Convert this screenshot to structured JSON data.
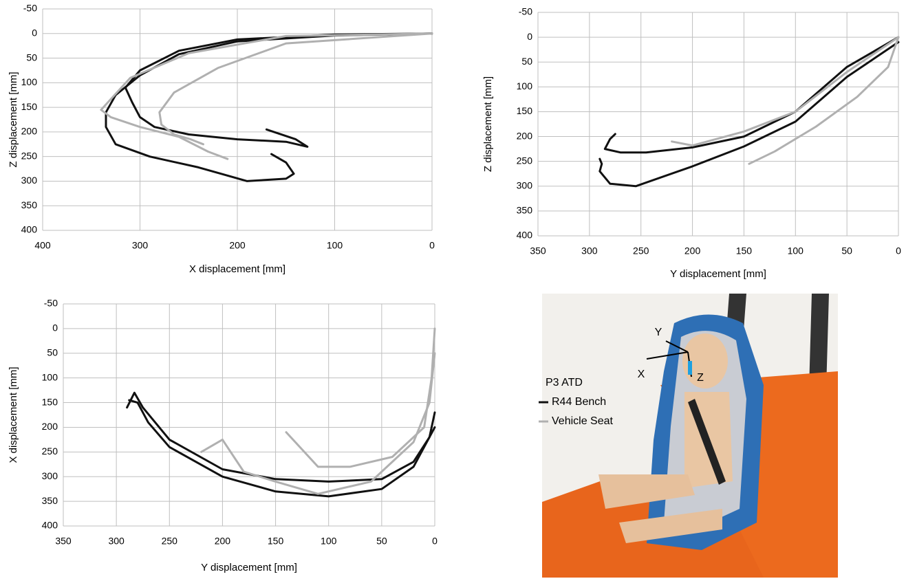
{
  "chart_data": [
    {
      "type": "line",
      "x_label": "X displacement [mm]",
      "y_label": "Z displacement [mm]",
      "xlim": [
        400,
        0
      ],
      "xticks": [
        400,
        300,
        200,
        100,
        0
      ],
      "ylim": [
        400,
        -50
      ],
      "yticks": [
        -50,
        0,
        50,
        100,
        150,
        200,
        250,
        300,
        350,
        400
      ],
      "grid": true,
      "series": [
        {
          "color": "#111111",
          "trials": [
            {
              "x": [
                0,
                100,
                200,
                260,
                300,
                315,
                308,
                300,
                285,
                250,
                200,
                150,
                128,
                140,
                170
              ],
              "y": [
                0,
                2,
                12,
                35,
                75,
                110,
                140,
                170,
                190,
                205,
                215,
                220,
                230,
                215,
                195
              ]
            },
            {
              "x": [
                0,
                100,
                200,
                260,
                300,
                325,
                335,
                335,
                325,
                290,
                240,
                190,
                150,
                142,
                150,
                165
              ],
              "y": [
                0,
                4,
                16,
                42,
                85,
                125,
                160,
                190,
                225,
                250,
                272,
                300,
                295,
                285,
                262,
                245
              ]
            }
          ]
        },
        {
          "color": "#b0b0b0",
          "trials": [
            {
              "x": [
                0,
                150,
                250,
                310,
                340,
                330,
                300,
                260,
                230,
                210
              ],
              "y": [
                0,
                5,
                40,
                90,
                155,
                170,
                190,
                210,
                240,
                255
              ]
            },
            {
              "x": [
                0,
                150,
                220,
                265,
                280,
                278,
                265,
                248,
                235
              ],
              "y": [
                0,
                20,
                70,
                120,
                160,
                185,
                205,
                215,
                225
              ]
            }
          ]
        }
      ]
    },
    {
      "type": "line",
      "x_label": "Y displacement [mm]",
      "y_label": "Z displacement [mm]",
      "xlim": [
        350,
        0
      ],
      "xticks": [
        350,
        300,
        250,
        200,
        150,
        100,
        50,
        0
      ],
      "ylim": [
        400,
        -50
      ],
      "yticks": [
        -50,
        0,
        50,
        100,
        150,
        200,
        250,
        300,
        350,
        400
      ],
      "grid": true,
      "series": [
        {
          "color": "#111111",
          "trials": [
            {
              "x": [
                0,
                50,
                100,
                150,
                200,
                245,
                270,
                285,
                280,
                275
              ],
              "y": [
                0,
                60,
                150,
                200,
                222,
                232,
                232,
                225,
                205,
                195
              ]
            },
            {
              "x": [
                0,
                50,
                100,
                150,
                200,
                255,
                280,
                290,
                288,
                290
              ],
              "y": [
                10,
                80,
                170,
                220,
                260,
                300,
                295,
                270,
                255,
                245
              ]
            }
          ]
        },
        {
          "color": "#b0b0b0",
          "trials": [
            {
              "x": [
                0,
                50,
                100,
                150,
                200,
                220
              ],
              "y": [
                0,
                70,
                150,
                190,
                218,
                210
              ]
            },
            {
              "x": [
                0,
                10,
                40,
                80,
                120,
                145
              ],
              "y": [
                0,
                60,
                120,
                180,
                230,
                255
              ]
            }
          ]
        }
      ]
    },
    {
      "type": "line",
      "x_label": "Y displacement [mm]",
      "y_label": "X displacement [mm]",
      "xlim": [
        350,
        0
      ],
      "xticks": [
        350,
        300,
        250,
        200,
        150,
        100,
        50,
        0
      ],
      "ylim": [
        400,
        -50
      ],
      "yticks": [
        -50,
        0,
        50,
        100,
        150,
        200,
        250,
        300,
        350,
        400
      ],
      "grid": true,
      "series": [
        {
          "color": "#111111",
          "trials": [
            {
              "x": [
                0,
                5,
                20,
                50,
                100,
                150,
                200,
                250,
                275,
                283,
                290
              ],
              "y": [
                170,
                220,
                270,
                305,
                310,
                305,
                285,
                225,
                160,
                130,
                160
              ]
            },
            {
              "x": [
                0,
                20,
                50,
                100,
                150,
                200,
                250,
                270,
                280,
                288
              ],
              "y": [
                200,
                280,
                325,
                340,
                330,
                300,
                240,
                190,
                150,
                145
              ]
            }
          ]
        },
        {
          "color": "#b0b0b0",
          "trials": [
            {
              "x": [
                0,
                3,
                10,
                40,
                80,
                110,
                140
              ],
              "y": [
                0,
                100,
                200,
                260,
                280,
                280,
                210
              ]
            },
            {
              "x": [
                0,
                5,
                20,
                60,
                110,
                150,
                180,
                200,
                220
              ],
              "y": [
                50,
                150,
                230,
                310,
                335,
                310,
                290,
                225,
                250
              ]
            }
          ]
        }
      ]
    }
  ],
  "legend": {
    "title": "P3 ATD",
    "entries": [
      {
        "name": "R44 Bench",
        "color": "#111111"
      },
      {
        "name": "Vehicle Seat",
        "color": "#b0b0b0"
      }
    ]
  },
  "photo": {
    "axis_labels": [
      "Y",
      "X",
      "Z"
    ]
  }
}
